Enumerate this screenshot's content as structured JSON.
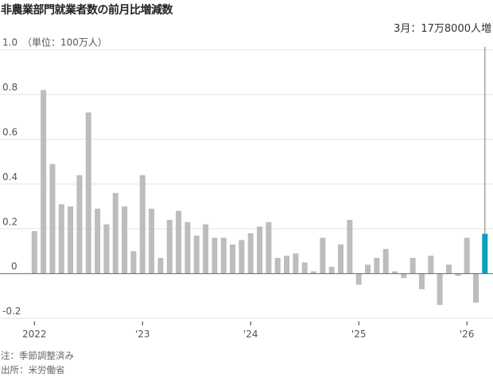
{
  "chart_data": {
    "type": "bar",
    "title": "非農業部門就業者数の前月比増減数",
    "unit_label": "（単位：100万人）",
    "annotation": "3月：17万8000人増",
    "x_tick_labels": [
      "2022",
      "'23",
      "'24",
      "'25",
      "'26"
    ],
    "y_ticks": [
      1.0,
      0.8,
      0.6,
      0.4,
      0.2,
      0,
      -0.2
    ],
    "y_tick_labels": [
      "1.0",
      "0.8",
      "0.6",
      "0.4",
      "0.2",
      "0",
      "-0.2"
    ],
    "ylim": [
      -0.2,
      1.0
    ],
    "grid": true,
    "start": "2022-01",
    "end": "2026-03",
    "values": [
      0.19,
      0.82,
      0.49,
      0.31,
      0.3,
      0.44,
      0.72,
      0.29,
      0.22,
      0.36,
      0.3,
      0.1,
      0.44,
      0.29,
      0.07,
      0.24,
      0.28,
      0.23,
      0.17,
      0.22,
      0.16,
      0.16,
      0.13,
      0.15,
      0.18,
      0.21,
      0.23,
      0.07,
      0.08,
      0.09,
      0.05,
      0.01,
      0.16,
      0.03,
      0.13,
      0.24,
      -0.05,
      0.04,
      0.07,
      0.11,
      0.01,
      -0.02,
      0.07,
      -0.07,
      0.08,
      -0.14,
      0.04,
      -0.01,
      0.16,
      -0.13,
      0.178
    ],
    "highlight_index": 50,
    "colors": {
      "bar": "#bdbdbd",
      "highlight": "#0aa0bd",
      "grid": "#ececec",
      "zero": "#666666"
    }
  },
  "notes": {
    "note": "注：季節調整済み",
    "source": "出所：米労働省"
  }
}
